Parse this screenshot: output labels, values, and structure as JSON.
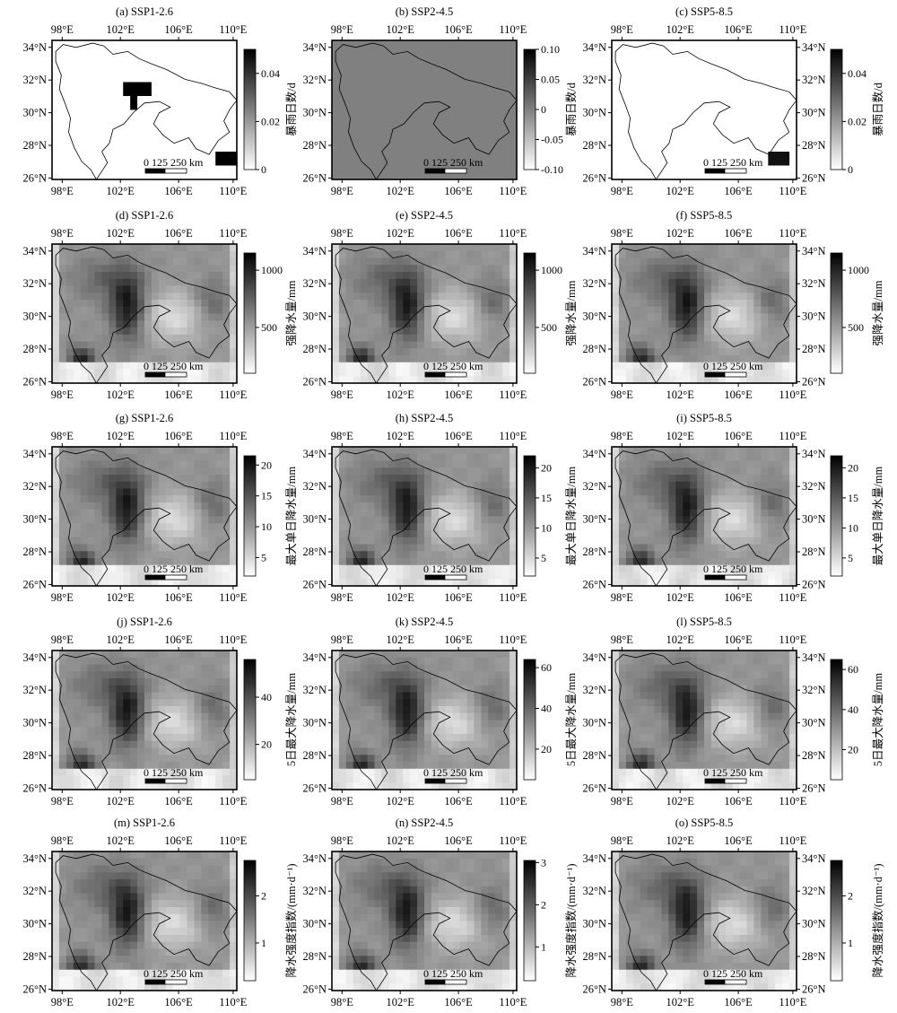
{
  "axis_ticks": {
    "top": [
      "98°E",
      "102°E",
      "106°E",
      "110°E"
    ],
    "bottom": [
      "98°E",
      "102°E",
      "106°E",
      "110°E"
    ],
    "left": [
      "34°N",
      "32°N",
      "30°N",
      "28°N",
      "26°N"
    ],
    "right": [
      "34°N",
      "32°N",
      "30°N",
      "28°N",
      "26°N"
    ]
  },
  "scale_bar": {
    "text": "0 125 250 km"
  },
  "colormap": {
    "low": "#ffffff",
    "high": "#000000"
  },
  "panels": [
    {
      "id": "a",
      "title": "(a) SSP1-2.6",
      "cbar_label": "暴雨日数/d",
      "cbar_ticks": [
        "0.04",
        "0.02",
        "0"
      ],
      "cbar_tick_values": [
        0.04,
        0.02,
        0
      ],
      "cbar_range": [
        0,
        0.05
      ],
      "style": "sparse-a"
    },
    {
      "id": "b",
      "title": "(b) SSP2-4.5",
      "cbar_label": "暴雨日数/d",
      "cbar_ticks": [
        "0.10",
        "0.05",
        "0",
        "-0.05",
        "-0.10"
      ],
      "cbar_tick_values": [
        0.1,
        0.05,
        0,
        -0.05,
        -0.1
      ],
      "cbar_range": [
        -0.1,
        0.1
      ],
      "style": "uniform"
    },
    {
      "id": "c",
      "title": "(c) SSP5-8.5",
      "cbar_label": "暴雨日数/d",
      "cbar_ticks": [
        "0.04",
        "0.02",
        "0"
      ],
      "cbar_tick_values": [
        0.04,
        0.02,
        0
      ],
      "cbar_range": [
        0,
        0.05
      ],
      "style": "sparse-c"
    },
    {
      "id": "d",
      "title": "(d) SSP1-2.6",
      "cbar_label": "强降水量/mm",
      "cbar_ticks": [
        "1000",
        "500"
      ],
      "cbar_tick_values": [
        1000,
        500
      ],
      "cbar_range": [
        100,
        1150
      ],
      "style": "field"
    },
    {
      "id": "e",
      "title": "(e) SSP2-4.5",
      "cbar_label": "强降水量/mm",
      "cbar_ticks": [
        "1000",
        "500"
      ],
      "cbar_tick_values": [
        1000,
        500
      ],
      "cbar_range": [
        100,
        1150
      ],
      "style": "field"
    },
    {
      "id": "f",
      "title": "(f) SSP5-8.5",
      "cbar_label": "强降水量/mm",
      "cbar_ticks": [
        "1000",
        "500"
      ],
      "cbar_tick_values": [
        1000,
        500
      ],
      "cbar_range": [
        100,
        1150
      ],
      "style": "field"
    },
    {
      "id": "g",
      "title": "(g) SSP1-2.6",
      "cbar_label": "最大单日降水量/mm",
      "cbar_ticks": [
        "20",
        "15",
        "10",
        "5"
      ],
      "cbar_tick_values": [
        20,
        15,
        10,
        5
      ],
      "cbar_range": [
        2,
        21.5
      ],
      "style": "field"
    },
    {
      "id": "h",
      "title": "(h) SSP2-4.5",
      "cbar_label": "最大单日降水量/mm",
      "cbar_ticks": [
        "20",
        "15",
        "10",
        "5"
      ],
      "cbar_tick_values": [
        20,
        15,
        10,
        5
      ],
      "cbar_range": [
        2,
        22
      ],
      "style": "field"
    },
    {
      "id": "i",
      "title": "(i) SSP5-8.5",
      "cbar_label": "最大单日降水量/mm",
      "cbar_ticks": [
        "20",
        "15",
        "10",
        "5"
      ],
      "cbar_tick_values": [
        20,
        15,
        10,
        5
      ],
      "cbar_range": [
        2,
        22
      ],
      "style": "field"
    },
    {
      "id": "j",
      "title": "(j) SSP1-2.6",
      "cbar_label": "5日最大降水量/mm",
      "cbar_ticks": [
        "40",
        "20"
      ],
      "cbar_tick_values": [
        40,
        20
      ],
      "cbar_range": [
        5,
        56
      ],
      "style": "field"
    },
    {
      "id": "k",
      "title": "(k) SSP2-4.5",
      "cbar_label": "5日最大降水量/mm",
      "cbar_ticks": [
        "60",
        "40",
        "20"
      ],
      "cbar_tick_values": [
        60,
        40,
        20
      ],
      "cbar_range": [
        5,
        64
      ],
      "style": "field"
    },
    {
      "id": "l",
      "title": "(l) SSP5-8.5",
      "cbar_label": "5日最大降水量/mm",
      "cbar_ticks": [
        "60",
        "40",
        "20"
      ],
      "cbar_tick_values": [
        60,
        40,
        20
      ],
      "cbar_range": [
        5,
        65
      ],
      "style": "field"
    },
    {
      "id": "m",
      "title": "(m) SSP1-2.6",
      "cbar_label": "降水强度指数/(mm·d⁻¹)",
      "cbar_ticks": [
        "2",
        "1"
      ],
      "cbar_tick_values": [
        2,
        1
      ],
      "cbar_range": [
        0.2,
        2.75
      ],
      "style": "field"
    },
    {
      "id": "n",
      "title": "(n) SSP2-4.5",
      "cbar_label": "降水强度指数/(mm·d⁻¹)",
      "cbar_ticks": [
        "3",
        "2",
        "1"
      ],
      "cbar_tick_values": [
        3,
        2,
        1
      ],
      "cbar_range": [
        0.2,
        3.05
      ],
      "style": "field"
    },
    {
      "id": "o",
      "title": "(o) SSP5-8.5",
      "cbar_label": "降水强度指数/(mm·d⁻¹)",
      "cbar_ticks": [
        "2",
        "1"
      ],
      "cbar_tick_values": [
        2,
        1
      ],
      "cbar_range": [
        0.2,
        2.75
      ],
      "style": "field"
    }
  ]
}
